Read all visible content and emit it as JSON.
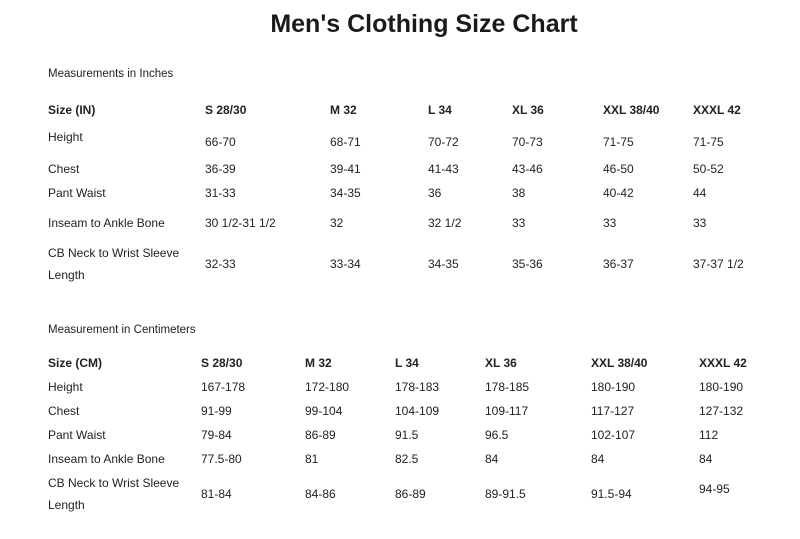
{
  "title": "Men's Clothing Size Chart",
  "inches": {
    "caption": "Measurements in Inches",
    "header": [
      "Size (IN)",
      "S  28/30",
      "M  32",
      "L  34",
      "XL  36",
      "XXL  38/40",
      "XXXL  42"
    ],
    "rows": [
      {
        "label": "Height",
        "values": [
          "66-70",
          "68-71",
          "70-72",
          "70-73",
          "71-75",
          "71-75"
        ]
      },
      {
        "label": "Chest",
        "values": [
          "36-39",
          "39-41",
          "41-43",
          "43-46",
          "46-50",
          "50-52"
        ]
      },
      {
        "label": "Pant Waist",
        "values": [
          "31-33",
          "34-35",
          "36",
          "38",
          "40-42",
          "44"
        ]
      },
      {
        "label": "Inseam to Ankle Bone",
        "values": [
          "30 1/2-31 1/2",
          "32",
          "32 1/2",
          "33",
          "33",
          "33"
        ]
      },
      {
        "label": "CB Neck to Wrist Sleeve",
        "label2": "Length",
        "values": [
          "32-33",
          "33-34",
          "34-35",
          "35-36",
          "36-37",
          "37-37 1/2"
        ]
      }
    ]
  },
  "centimeters": {
    "caption": "Measurement in Centimeters",
    "header": [
      "Size (CM)",
      "S  28/30",
      "M  32",
      "L  34",
      "XL  36",
      "XXL  38/40",
      "XXXL  42"
    ],
    "rows": [
      {
        "label": "Height",
        "values": [
          "167-178",
          "172-180",
          "178-183",
          "178-185",
          "180-190",
          "180-190"
        ]
      },
      {
        "label": "Chest",
        "values": [
          "91-99",
          "99-104",
          "104-109",
          "109-117",
          "117-127",
          "127-132"
        ]
      },
      {
        "label": "Pant Waist",
        "values": [
          "79-84",
          "86-89",
          "91.5",
          "96.5",
          "102-107",
          "112"
        ]
      },
      {
        "label": "Inseam to Ankle Bone",
        "values": [
          "77.5-80",
          "81",
          "82.5",
          "84",
          "84",
          "84"
        ]
      },
      {
        "label": "CB Neck to Wrist Sleeve",
        "label2": "Length",
        "values": [
          "81-84",
          "84-86",
          "86-89",
          "89-91.5",
          "91.5-94",
          "94-95"
        ]
      }
    ]
  }
}
